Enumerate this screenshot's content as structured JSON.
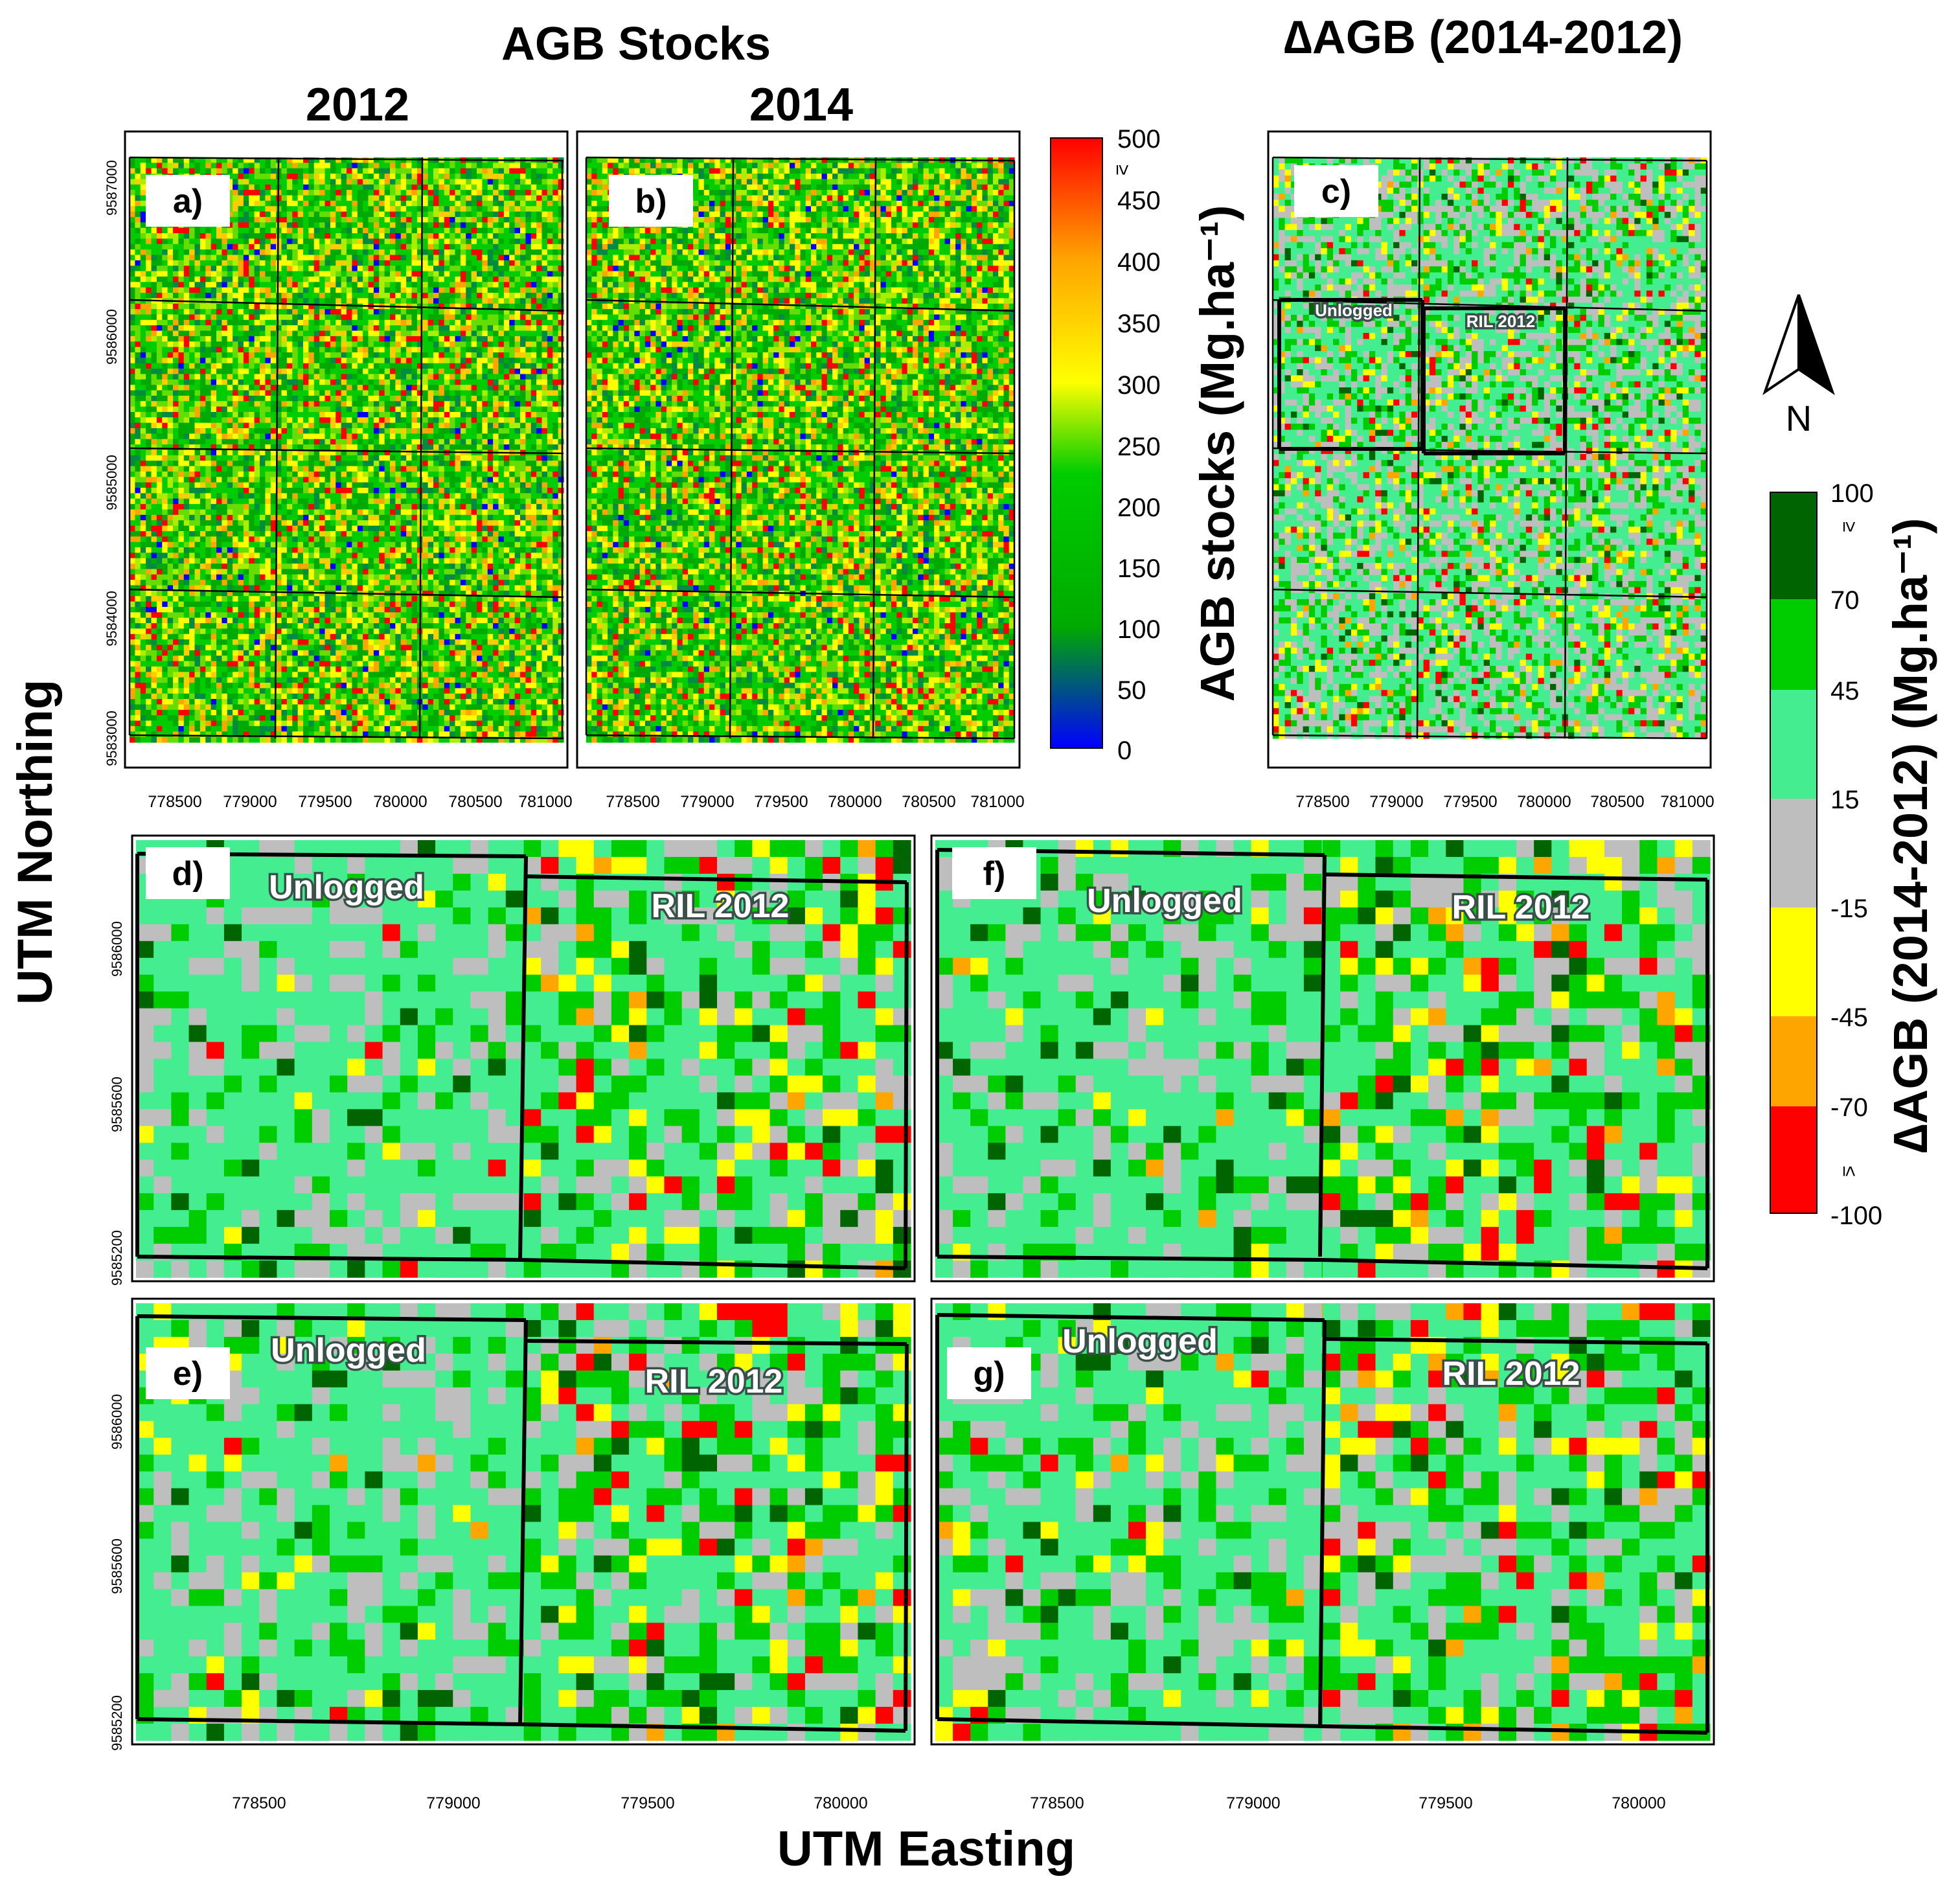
{
  "titles": {
    "agb_stocks": "AGB Stocks",
    "year_2012": "2012",
    "year_2014": "2014",
    "delta_title": "∆AGB (2014-2012)"
  },
  "axes": {
    "x_label": "UTM Easting",
    "y_label": "UTM Northing",
    "top_x_ticks": [
      "778500",
      "779000",
      "779500",
      "780000",
      "780500",
      "781000"
    ],
    "top_y_ticks": [
      "9587000",
      "9586000",
      "9585000",
      "9584000",
      "9583000"
    ],
    "bottom_x_ticks": [
      "778500",
      "779000",
      "779500",
      "780000"
    ],
    "bottom_y_ticks": [
      "9586000",
      "9585600",
      "9585200"
    ]
  },
  "colorbar_stocks": {
    "label": "AGB stocks (Mg.ha⁻¹)",
    "ticks": [
      "500",
      "450",
      "400",
      "350",
      "300",
      "250",
      "200",
      "150",
      "100",
      "50",
      "0"
    ],
    "geq": "≥",
    "colors": [
      "#0000ff",
      "#00aa00",
      "#00cc00",
      "#ffff00",
      "#ffa500",
      "#ff0000"
    ]
  },
  "colorbar_delta": {
    "label": "∆AGB (2014-2012) (Mg.ha⁻¹)",
    "ticks": [
      "100",
      "70",
      "45",
      "15",
      "-15",
      "-45",
      "-70",
      "-100"
    ],
    "geq": "≥",
    "leq": "≤",
    "classes": [
      {
        "range": "≥ 70",
        "color": "#006400"
      },
      {
        "range": "45 to 70",
        "color": "#00cd00"
      },
      {
        "range": "15 to 45",
        "color": "#44ee90"
      },
      {
        "range": "-15 to 15",
        "color": "#bebebe"
      },
      {
        "range": "-45 to -15",
        "color": "#ffff00"
      },
      {
        "range": "-70 to -45",
        "color": "#ffa500"
      },
      {
        "range": "≤ -70",
        "color": "#ff0000"
      }
    ]
  },
  "north_arrow": {
    "label": "N"
  },
  "panels": [
    {
      "id": "a",
      "label": "a)"
    },
    {
      "id": "b",
      "label": "b)"
    },
    {
      "id": "c",
      "label": "c)",
      "zones": [
        "Unlogged",
        "RIL 2012"
      ]
    },
    {
      "id": "d",
      "label": "d)",
      "zones": [
        "Unlogged",
        "RIL 2012"
      ]
    },
    {
      "id": "f",
      "label": "f)",
      "zones": [
        "Unlogged",
        "RIL 2012"
      ]
    },
    {
      "id": "e",
      "label": "e)",
      "zones": [
        "Unlogged",
        "RIL 2012"
      ]
    },
    {
      "id": "g",
      "label": "g)",
      "zones": [
        "Unlogged",
        "RIL 2012"
      ]
    }
  ]
}
